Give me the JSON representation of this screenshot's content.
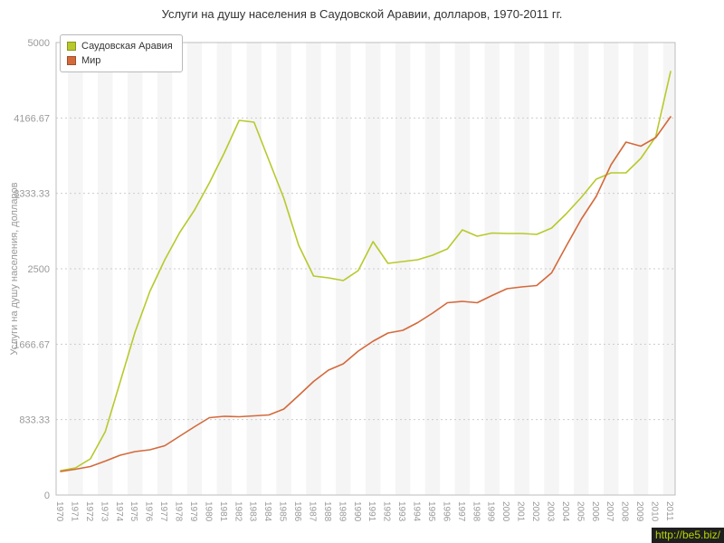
{
  "page": {
    "watermark": "http://be5.biz/"
  },
  "chart_data": {
    "type": "line",
    "title": "Услуги на душу населения в Саудовской Аравии, долларов, 1970-2011 гг.",
    "xlabel": "",
    "ylabel": "Услуги на душу населения, долларов",
    "ylim": [
      0,
      5000
    ],
    "yticks": [
      0,
      833.33,
      1666.67,
      2500,
      3333.33,
      4166.67,
      5000
    ],
    "ytick_labels": [
      "0",
      "833.33",
      "1666.67",
      "2500",
      "3333.33",
      "4166.67",
      "5000"
    ],
    "grid": true,
    "legend_position": "top-left",
    "categories": [
      1970,
      1971,
      1972,
      1973,
      1974,
      1975,
      1976,
      1977,
      1978,
      1979,
      1980,
      1981,
      1982,
      1983,
      1984,
      1985,
      1986,
      1987,
      1988,
      1989,
      1990,
      1991,
      1992,
      1993,
      1994,
      1995,
      1996,
      1997,
      1998,
      1999,
      2000,
      2001,
      2002,
      2003,
      2004,
      2005,
      2006,
      2007,
      2008,
      2009,
      2010,
      2011
    ],
    "series": [
      {
        "name": "Саудовская Аравия",
        "color": "#b8c92b",
        "values": [
          270,
          300,
          400,
          700,
          1250,
          1800,
          2250,
          2600,
          2900,
          3150,
          3450,
          3780,
          4140,
          4120,
          3700,
          3280,
          2760,
          2420,
          2400,
          2370,
          2480,
          2800,
          2560,
          2580,
          2600,
          2650,
          2720,
          2930,
          2860,
          2895,
          2890,
          2890,
          2880,
          2950,
          3110,
          3290,
          3490,
          3560,
          3560,
          3720,
          3960,
          4680
        ]
      },
      {
        "name": "Мир",
        "color": "#d4693b",
        "values": [
          260,
          285,
          315,
          375,
          440,
          480,
          500,
          545,
          650,
          755,
          855,
          870,
          865,
          875,
          885,
          950,
          1100,
          1255,
          1380,
          1450,
          1590,
          1700,
          1790,
          1820,
          1905,
          2010,
          2125,
          2140,
          2125,
          2205,
          2280,
          2300,
          2315,
          2455,
          2755,
          3050,
          3300,
          3650,
          3900,
          3855,
          3950,
          4180
        ]
      }
    ]
  }
}
